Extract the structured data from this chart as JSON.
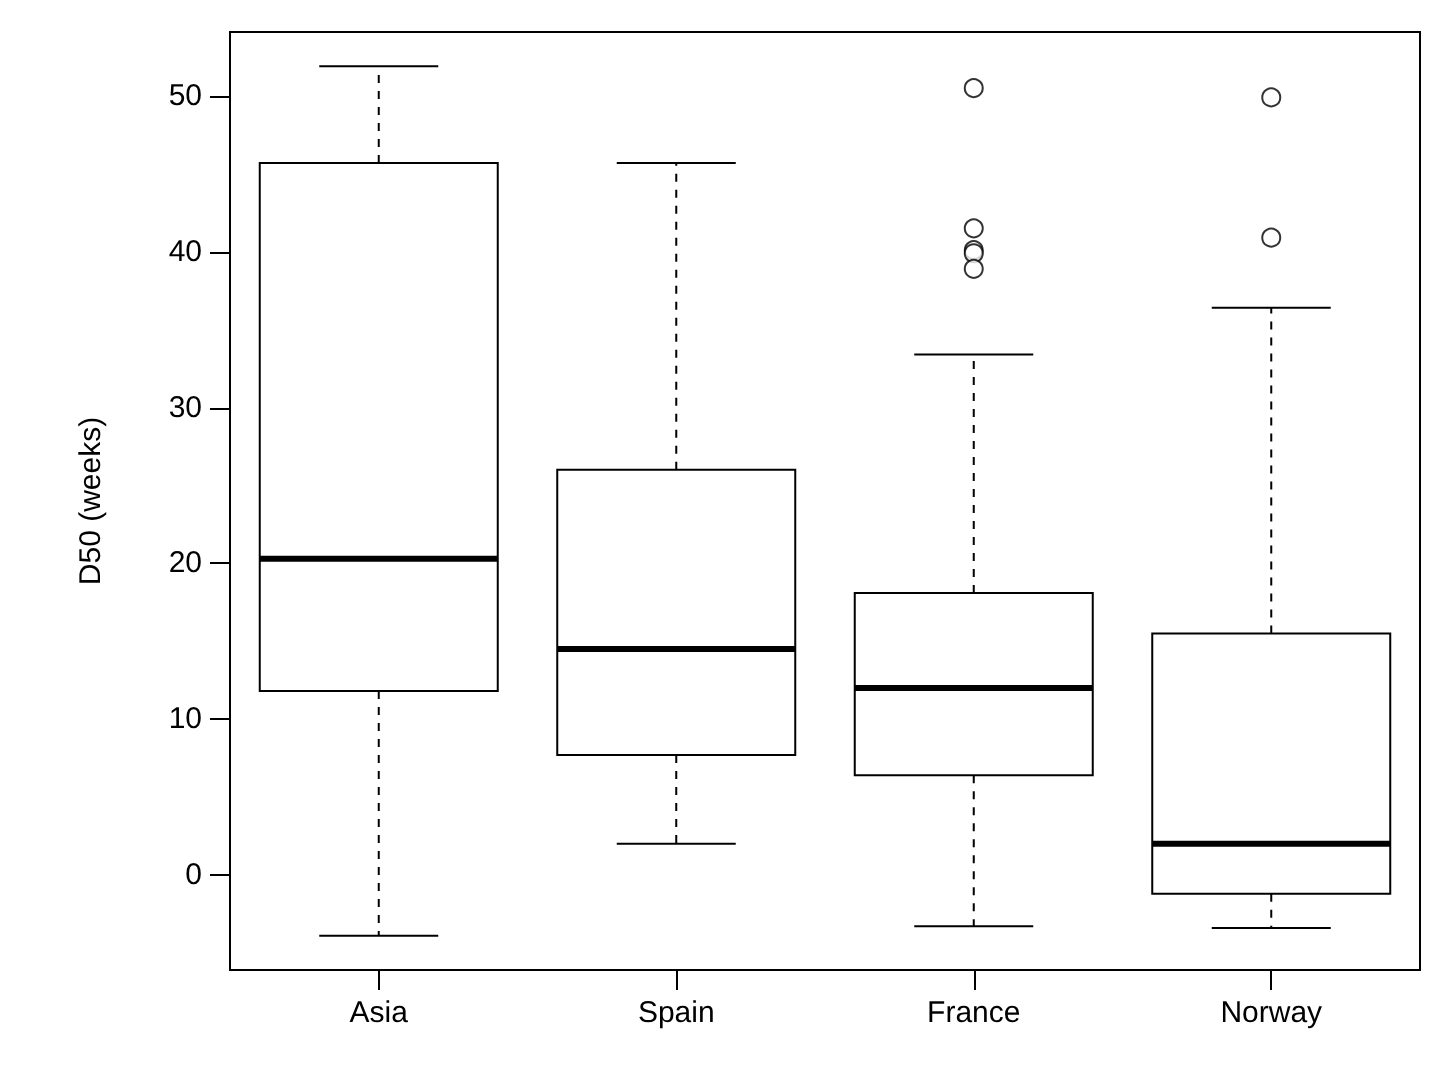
{
  "chart_data": {
    "type": "box",
    "ylabel": "D50 (weeks)",
    "categories": [
      "Asia",
      "Spain",
      "France",
      "Norway"
    ],
    "boxes": [
      {
        "low": -3.9,
        "q1": 11.8,
        "median": 20.3,
        "q3": 45.7,
        "high": 51.9
      },
      {
        "low": 2.0,
        "q1": 7.7,
        "median": 14.5,
        "q3": 26.0,
        "high": 45.7
      },
      {
        "low": -3.3,
        "q1": 6.4,
        "median": 12.0,
        "q3": 18.1,
        "high": 33.4,
        "outliers": [
          50.5,
          41.5,
          40.1,
          39.9,
          38.9
        ]
      },
      {
        "low": -3.4,
        "q1": -1.2,
        "median": 2.0,
        "q3": 15.5,
        "high": 36.4,
        "outliers": [
          49.9,
          40.9
        ]
      }
    ],
    "ylim": [
      -6.1,
      54.1
    ],
    "yticks": [
      0,
      10,
      20,
      30,
      40,
      50
    ],
    "grid": false
  }
}
